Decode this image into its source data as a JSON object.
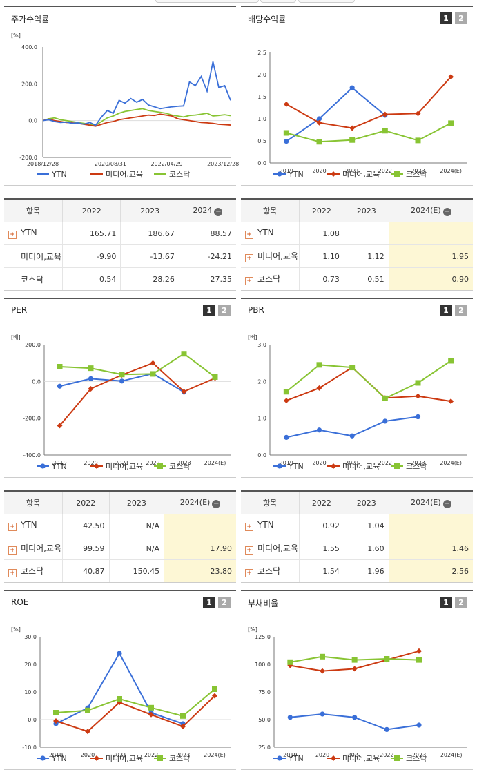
{
  "colors": {
    "ytn": "#3a6fd8",
    "media": "#cc3a12",
    "kosdaq": "#88c433"
  },
  "legend": {
    "ytn": "YTN",
    "media": "미디어,교육",
    "kosdaq": "코스닥"
  },
  "stock": {
    "title": "주가수익률",
    "chart_data": {
      "type": "line",
      "title": "주가수익률",
      "yunit": "[%]",
      "ylim": [
        -200,
        400
      ],
      "yticks": [
        "400.0",
        "200.0",
        "0.0",
        "-200.0"
      ],
      "xticks": [
        "2018/12/28",
        "2020/08/31",
        "2022/04/29",
        "2023/12/28"
      ],
      "x": [
        "2018/12/28",
        "2019/02",
        "2019/04",
        "2019/06",
        "2019/08",
        "2019/10",
        "2019/12",
        "2020/02",
        "2020/04",
        "2020/06",
        "2020/08",
        "2020/10",
        "2020/12",
        "2021/02",
        "2021/04",
        "2021/06",
        "2021/08",
        "2021/10",
        "2021/12",
        "2022/02",
        "2022/04",
        "2022/06",
        "2022/08",
        "2022/10",
        "2022/12",
        "2023/02",
        "2023/04",
        "2023/06",
        "2023/08",
        "2023/10",
        "2023/12",
        "2024/02",
        "2024/04"
      ],
      "series": [
        {
          "name": "YTN",
          "values": [
            0,
            5,
            -5,
            -10,
            -8,
            -15,
            -12,
            -20,
            -10,
            -25,
            20,
            55,
            40,
            110,
            95,
            120,
            100,
            115,
            85,
            75,
            65,
            70,
            75,
            78,
            80,
            210,
            190,
            240,
            160,
            320,
            180,
            190,
            110
          ]
        },
        {
          "name": "미디어,교육",
          "values": [
            0,
            8,
            0,
            -5,
            -10,
            -12,
            -15,
            -20,
            -25,
            -30,
            -20,
            -10,
            -5,
            5,
            10,
            15,
            20,
            25,
            30,
            28,
            35,
            30,
            25,
            10,
            5,
            0,
            -5,
            -10,
            -12,
            -15,
            -20,
            -22,
            -24
          ]
        },
        {
          "name": "코스닥",
          "values": [
            0,
            10,
            15,
            5,
            0,
            -5,
            -10,
            -15,
            -20,
            -25,
            -5,
            15,
            25,
            40,
            50,
            55,
            60,
            65,
            55,
            50,
            45,
            40,
            30,
            25,
            20,
            28,
            30,
            35,
            40,
            25,
            28,
            32,
            27
          ]
        }
      ]
    }
  },
  "dividend": {
    "title": "배당수익률",
    "btn1": "1",
    "btn2": "2",
    "chart_data": {
      "type": "line",
      "title": "배당수익률",
      "ylim": [
        0,
        2.5
      ],
      "yticks": [
        "2.5",
        "2.0",
        "1.5",
        "1.0",
        "0.5",
        "0.0"
      ],
      "x": [
        "2019",
        "2020",
        "2021",
        "2022",
        "2023",
        "2024(E)"
      ],
      "series": [
        {
          "name": "YTN",
          "values": [
            0.49,
            1.0,
            1.7,
            1.08,
            null,
            null
          ]
        },
        {
          "name": "미디어,교육",
          "values": [
            1.33,
            0.91,
            0.79,
            1.1,
            1.12,
            1.95
          ]
        },
        {
          "name": "코스닥",
          "values": [
            0.68,
            0.48,
            0.52,
            0.73,
            0.51,
            0.9
          ]
        }
      ]
    }
  },
  "stock_table": {
    "headers": [
      "항목",
      "2022",
      "2023",
      "2024"
    ],
    "rows": [
      {
        "name": "YTN",
        "plus": true,
        "v": [
          "165.71",
          "186.67",
          "88.57"
        ]
      },
      {
        "name": "미디어,교육",
        "plus": false,
        "v": [
          "-9.90",
          "-13.67",
          "-24.21"
        ]
      },
      {
        "name": "코스닥",
        "plus": false,
        "v": [
          "0.54",
          "28.26",
          "27.35"
        ]
      }
    ]
  },
  "dividend_table": {
    "headers": [
      "항목",
      "2022",
      "2023",
      "2024(E)"
    ],
    "rows": [
      {
        "name": "YTN",
        "plus": true,
        "v": [
          "1.08",
          "",
          ""
        ]
      },
      {
        "name": "미디어,교육",
        "plus": true,
        "v": [
          "1.10",
          "1.12",
          "1.95"
        ]
      },
      {
        "name": "코스닥",
        "plus": true,
        "v": [
          "0.73",
          "0.51",
          "0.90"
        ]
      }
    ]
  },
  "per": {
    "title": "PER",
    "btn1": "1",
    "btn2": "2",
    "chart_data": {
      "type": "line",
      "title": "PER",
      "yunit": "[배]",
      "ylim": [
        -400,
        200
      ],
      "yticks": [
        "200.0",
        "0.0",
        "-200.0",
        "-400.0"
      ],
      "x": [
        "2019",
        "2020",
        "2021",
        "2022",
        "2023",
        "2024(E)"
      ],
      "series": [
        {
          "name": "YTN",
          "values": [
            -26,
            15,
            2,
            42.5,
            -58,
            null
          ]
        },
        {
          "name": "미디어,교육",
          "values": [
            -240,
            -40,
            35,
            99.59,
            -55,
            17.9
          ]
        },
        {
          "name": "코스닥",
          "values": [
            80,
            72,
            38,
            40.87,
            150.45,
            23.8
          ]
        }
      ]
    }
  },
  "pbr": {
    "title": "PBR",
    "btn1": "1",
    "btn2": "2",
    "chart_data": {
      "type": "line",
      "title": "PBR",
      "yunit": "[배]",
      "ylim": [
        0,
        3
      ],
      "yticks": [
        "3.0",
        "2.0",
        "1.0",
        "0.0"
      ],
      "x": [
        "2019",
        "2020",
        "2021",
        "2022",
        "2023",
        "2024(E)"
      ],
      "series": [
        {
          "name": "YTN",
          "values": [
            0.48,
            0.68,
            0.52,
            0.92,
            1.04,
            null
          ]
        },
        {
          "name": "미디어,교육",
          "values": [
            1.48,
            1.82,
            2.38,
            1.55,
            1.6,
            1.46
          ]
        },
        {
          "name": "코스닥",
          "values": [
            1.72,
            2.45,
            2.38,
            1.54,
            1.96,
            2.56
          ]
        }
      ]
    }
  },
  "per_table": {
    "headers": [
      "항목",
      "2022",
      "2023",
      "2024(E)"
    ],
    "rows": [
      {
        "name": "YTN",
        "plus": true,
        "v": [
          "42.50",
          "N/A",
          ""
        ]
      },
      {
        "name": "미디어,교육",
        "plus": true,
        "v": [
          "99.59",
          "N/A",
          "17.90"
        ]
      },
      {
        "name": "코스닥",
        "plus": true,
        "v": [
          "40.87",
          "150.45",
          "23.80"
        ]
      }
    ]
  },
  "pbr_table": {
    "headers": [
      "항목",
      "2022",
      "2023",
      "2024(E)"
    ],
    "rows": [
      {
        "name": "YTN",
        "plus": true,
        "v": [
          "0.92",
          "1.04",
          ""
        ]
      },
      {
        "name": "미디어,교육",
        "plus": true,
        "v": [
          "1.55",
          "1.60",
          "1.46"
        ]
      },
      {
        "name": "코스닥",
        "plus": true,
        "v": [
          "1.54",
          "1.96",
          "2.56"
        ]
      }
    ]
  },
  "roe": {
    "title": "ROE",
    "btn1": "1",
    "btn2": "2",
    "chart_data": {
      "type": "line",
      "title": "ROE",
      "yunit": "[%]",
      "ylim": [
        -10,
        30
      ],
      "yticks": [
        "30.0",
        "20.0",
        "10.0",
        "0.0",
        "-10.0"
      ],
      "x": [
        "2019",
        "2020",
        "2021",
        "2022",
        "2023",
        "2024(E)"
      ],
      "series": [
        {
          "name": "YTN",
          "values": [
            -1.5,
            4.2,
            24.0,
            2.5,
            -1.5,
            null
          ]
        },
        {
          "name": "미디어,교육",
          "values": [
            -0.5,
            -4.3,
            6.2,
            1.8,
            -2.5,
            8.6
          ]
        },
        {
          "name": "코스닥",
          "values": [
            2.5,
            3.3,
            7.5,
            4.3,
            1.3,
            11.0
          ]
        }
      ]
    }
  },
  "debt": {
    "title": "부채비율",
    "btn1": "1",
    "btn2": "2",
    "chart_data": {
      "type": "line",
      "title": "부채비율",
      "yunit": "[%]",
      "ylim": [
        25,
        125
      ],
      "yticks": [
        "125.0",
        "100.0",
        "75.0",
        "50.0",
        "25.0"
      ],
      "x": [
        "2019",
        "2020",
        "2021",
        "2022",
        "2023",
        "2024(E)"
      ],
      "series": [
        {
          "name": "YTN",
          "values": [
            52,
            55,
            52,
            41,
            45,
            null
          ]
        },
        {
          "name": "미디어,교육",
          "values": [
            99,
            94,
            96,
            104,
            112,
            null
          ]
        },
        {
          "name": "코스닥",
          "values": [
            102,
            107,
            104,
            105,
            104,
            null
          ]
        }
      ]
    }
  }
}
